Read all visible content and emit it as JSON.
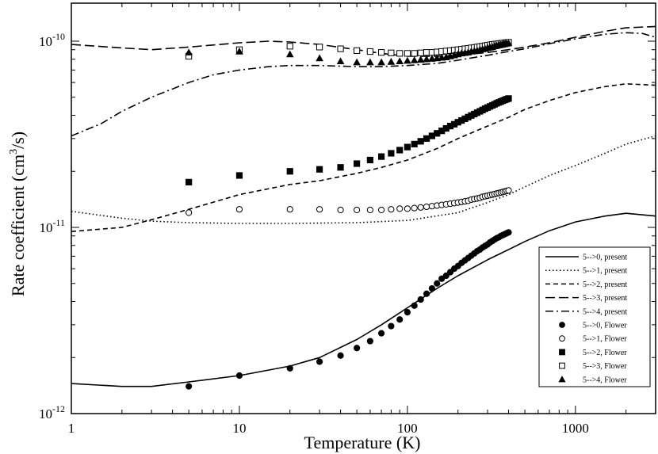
{
  "chart_data": {
    "type": "line",
    "title": "",
    "xlabel": "Temperature (K)",
    "ylabel": "Rate coefficient (cm",
    "ylabel_sup": "3",
    "ylabel_tail": "/s)",
    "xscale": "log",
    "yscale": "log",
    "xlim": [
      1,
      3000
    ],
    "ylim": [
      1e-12,
      1.6e-10
    ],
    "x_tick_labels": [
      {
        "value": 1,
        "label": "1"
      },
      {
        "value": 10,
        "label": "10"
      },
      {
        "value": 100,
        "label": "100"
      },
      {
        "value": 1000,
        "label": "1000"
      }
    ],
    "y_tick_labels": [
      {
        "value": 1e-12,
        "base": "10",
        "exp": "-12"
      },
      {
        "value": 1e-11,
        "base": "10",
        "exp": "-11"
      },
      {
        "value": 1e-10,
        "base": "10",
        "exp": "-10"
      }
    ],
    "grid": false,
    "legend_position": "bottom-right",
    "series": [
      {
        "name": "5-->0, present",
        "style": "line",
        "dash": "solid",
        "x": [
          1,
          2,
          3,
          5,
          10,
          20,
          30,
          50,
          70,
          100,
          150,
          200,
          300,
          400,
          500,
          700,
          1000,
          1500,
          2000,
          3000
        ],
        "y": [
          1.45e-12,
          1.4e-12,
          1.4e-12,
          1.48e-12,
          1.6e-12,
          1.8e-12,
          2e-12,
          2.5e-12,
          3e-12,
          3.7e-12,
          4.7e-12,
          5.5e-12,
          6.7e-12,
          7.6e-12,
          8.4e-12,
          9.6e-12,
          1.07e-11,
          1.15e-11,
          1.19e-11,
          1.15e-11
        ]
      },
      {
        "name": "5-->1, present",
        "style": "line",
        "dash": "dotted",
        "x": [
          1,
          2,
          3,
          5,
          10,
          20,
          50,
          100,
          200,
          300,
          400,
          500,
          700,
          1000,
          1500,
          2000,
          3000
        ],
        "y": [
          1.22e-11,
          1.12e-11,
          1.08e-11,
          1.06e-11,
          1.05e-11,
          1.05e-11,
          1.06e-11,
          1.09e-11,
          1.2e-11,
          1.36e-11,
          1.5e-11,
          1.65e-11,
          1.9e-11,
          2.15e-11,
          2.5e-11,
          2.8e-11,
          3.1e-11
        ]
      },
      {
        "name": "5-->2, present",
        "style": "line",
        "dash": "dashed",
        "x": [
          1,
          2,
          3,
          5,
          10,
          20,
          30,
          50,
          70,
          100,
          150,
          200,
          300,
          400,
          500,
          700,
          1000,
          1500,
          2000,
          3000
        ],
        "y": [
          9.5e-12,
          1e-11,
          1.1e-11,
          1.25e-11,
          1.5e-11,
          1.7e-11,
          1.78e-11,
          1.95e-11,
          2.1e-11,
          2.3e-11,
          2.65e-11,
          3e-11,
          3.5e-11,
          3.9e-11,
          4.3e-11,
          4.8e-11,
          5.3e-11,
          5.7e-11,
          5.9e-11,
          5.8e-11
        ]
      },
      {
        "name": "5-->3, present",
        "style": "line",
        "dash": "longdash",
        "x": [
          1,
          2,
          3,
          5,
          10,
          15,
          20,
          30,
          50,
          70,
          100,
          150,
          200,
          300,
          400,
          500,
          700,
          1000,
          1500,
          2000,
          3000
        ],
        "y": [
          9.6e-11,
          9.2e-11,
          9e-11,
          9.3e-11,
          9.8e-11,
          1e-10,
          9.9e-11,
          9.6e-11,
          9e-11,
          8.6e-11,
          8.3e-11,
          8.3e-11,
          8.4e-11,
          8.7e-11,
          9e-11,
          9.3e-11,
          9.8e-11,
          1.05e-10,
          1.13e-10,
          1.18e-10,
          1.2e-10
        ]
      },
      {
        "name": "5-->4, present",
        "style": "line",
        "dash": "dashdot",
        "x": [
          1,
          1.5,
          2,
          3,
          5,
          7,
          10,
          15,
          20,
          30,
          50,
          70,
          100,
          150,
          200,
          300,
          400,
          500,
          700,
          1000,
          1500,
          2000,
          2500,
          3000
        ],
        "y": [
          3.1e-11,
          3.6e-11,
          4.2e-11,
          5e-11,
          6e-11,
          6.6e-11,
          7e-11,
          7.3e-11,
          7.4e-11,
          7.4e-11,
          7.3e-11,
          7.3e-11,
          7.4e-11,
          7.6e-11,
          7.9e-11,
          8.4e-11,
          8.8e-11,
          9.1e-11,
          9.7e-11,
          1.03e-10,
          1.09e-10,
          1.11e-10,
          1.1e-10,
          1.05e-10
        ]
      },
      {
        "name": "5-->0, Flower",
        "style": "marker",
        "marker": "circle-filled",
        "x": [
          5,
          10,
          20,
          30,
          40,
          50,
          60,
          70,
          80,
          90,
          100,
          110,
          120,
          130,
          140,
          150,
          160,
          170,
          180,
          190,
          200,
          210,
          220,
          230,
          240,
          250,
          260,
          270,
          280,
          290,
          300,
          310,
          320,
          330,
          340,
          350,
          360,
          370,
          380,
          390,
          400
        ],
        "y": [
          1.4e-12,
          1.6e-12,
          1.75e-12,
          1.9e-12,
          2.05e-12,
          2.25e-12,
          2.45e-12,
          2.7e-12,
          2.95e-12,
          3.2e-12,
          3.5e-12,
          3.8e-12,
          4.1e-12,
          4.4e-12,
          4.7e-12,
          5e-12,
          5.3e-12,
          5.5e-12,
          5.75e-12,
          6e-12,
          6.2e-12,
          6.45e-12,
          6.65e-12,
          6.85e-12,
          7.05e-12,
          7.25e-12,
          7.45e-12,
          7.6e-12,
          7.8e-12,
          7.95e-12,
          8.1e-12,
          8.3e-12,
          8.45e-12,
          8.6e-12,
          8.75e-12,
          8.85e-12,
          9e-12,
          9.1e-12,
          9.2e-12,
          9.3e-12,
          9.4e-12
        ]
      },
      {
        "name": "5-->1, Flower",
        "style": "marker",
        "marker": "circle-open",
        "x": [
          5,
          10,
          20,
          30,
          40,
          50,
          60,
          70,
          80,
          90,
          100,
          110,
          120,
          130,
          140,
          150,
          160,
          170,
          180,
          190,
          200,
          210,
          220,
          230,
          240,
          250,
          260,
          270,
          280,
          290,
          300,
          310,
          320,
          330,
          340,
          350,
          360,
          370,
          380,
          390,
          400
        ],
        "y": [
          1.2e-11,
          1.25e-11,
          1.25e-11,
          1.25e-11,
          1.24e-11,
          1.24e-11,
          1.24e-11,
          1.24e-11,
          1.25e-11,
          1.26e-11,
          1.26e-11,
          1.27e-11,
          1.28e-11,
          1.29e-11,
          1.3e-11,
          1.31e-11,
          1.32e-11,
          1.33e-11,
          1.34e-11,
          1.35e-11,
          1.36e-11,
          1.37e-11,
          1.38e-11,
          1.39e-11,
          1.41e-11,
          1.42e-11,
          1.43e-11,
          1.44e-11,
          1.46e-11,
          1.47e-11,
          1.48e-11,
          1.49e-11,
          1.5e-11,
          1.51e-11,
          1.52e-11,
          1.53e-11,
          1.54e-11,
          1.55e-11,
          1.56e-11,
          1.57e-11,
          1.58e-11
        ]
      },
      {
        "name": "5-->2, Flower",
        "style": "marker",
        "marker": "square-filled",
        "x": [
          5,
          10,
          20,
          30,
          40,
          50,
          60,
          70,
          80,
          90,
          100,
          110,
          120,
          130,
          140,
          150,
          160,
          170,
          180,
          190,
          200,
          210,
          220,
          230,
          240,
          250,
          260,
          270,
          280,
          290,
          300,
          310,
          320,
          330,
          340,
          350,
          360,
          370,
          380,
          390,
          400
        ],
        "y": [
          1.75e-11,
          1.9e-11,
          2e-11,
          2.05e-11,
          2.1e-11,
          2.2e-11,
          2.3e-11,
          2.4e-11,
          2.5e-11,
          2.6e-11,
          2.7e-11,
          2.8e-11,
          2.9e-11,
          3e-11,
          3.1e-11,
          3.2e-11,
          3.3e-11,
          3.4e-11,
          3.5e-11,
          3.58e-11,
          3.67e-11,
          3.75e-11,
          3.83e-11,
          3.91e-11,
          3.99e-11,
          4.06e-11,
          4.13e-11,
          4.2e-11,
          4.27e-11,
          4.34e-11,
          4.4e-11,
          4.46e-11,
          4.52e-11,
          4.58e-11,
          4.64e-11,
          4.69e-11,
          4.74e-11,
          4.79e-11,
          4.84e-11,
          4.88e-11,
          4.92e-11
        ]
      },
      {
        "name": "5-->3, Flower",
        "style": "marker",
        "marker": "square-open",
        "x": [
          5,
          10,
          20,
          30,
          40,
          50,
          60,
          70,
          80,
          90,
          100,
          110,
          120,
          130,
          140,
          150,
          160,
          170,
          180,
          190,
          200,
          210,
          220,
          230,
          240,
          250,
          260,
          270,
          280,
          290,
          300,
          310,
          320,
          330,
          340,
          350,
          360,
          370,
          380,
          390,
          400
        ],
        "y": [
          8.3e-11,
          9e-11,
          9.4e-11,
          9.3e-11,
          9.1e-11,
          8.9e-11,
          8.8e-11,
          8.7e-11,
          8.65e-11,
          8.6e-11,
          8.6e-11,
          8.6e-11,
          8.65e-11,
          8.7e-11,
          8.7e-11,
          8.75e-11,
          8.8e-11,
          8.85e-11,
          8.9e-11,
          8.95e-11,
          9e-11,
          9.05e-11,
          9.1e-11,
          9.15e-11,
          9.2e-11,
          9.25e-11,
          9.3e-11,
          9.35e-11,
          9.4e-11,
          9.45e-11,
          9.5e-11,
          9.55e-11,
          9.6e-11,
          9.63e-11,
          9.66e-11,
          9.7e-11,
          9.73e-11,
          9.76e-11,
          9.8e-11,
          9.83e-11,
          9.86e-11
        ]
      },
      {
        "name": "5-->4, Flower",
        "style": "marker",
        "marker": "triangle-filled",
        "x": [
          5,
          10,
          20,
          30,
          40,
          50,
          60,
          70,
          80,
          90,
          100,
          110,
          120,
          130,
          140,
          150,
          160,
          170,
          180,
          190,
          200,
          210,
          220,
          230,
          240,
          250,
          260,
          270,
          280,
          290,
          300,
          310,
          320,
          330,
          340,
          350,
          360,
          370,
          380,
          390,
          400
        ],
        "y": [
          8.7e-11,
          8.8e-11,
          8.5e-11,
          8.1e-11,
          7.8e-11,
          7.7e-11,
          7.7e-11,
          7.7e-11,
          7.75e-11,
          7.8e-11,
          7.85e-11,
          7.9e-11,
          7.95e-11,
          8e-11,
          8.05e-11,
          8.1e-11,
          8.15e-11,
          8.2e-11,
          8.3e-11,
          8.4e-11,
          8.5e-11,
          8.6e-11,
          8.65e-11,
          8.7e-11,
          8.8e-11,
          8.85e-11,
          8.9e-11,
          9e-11,
          9.05e-11,
          9.1e-11,
          9.2e-11,
          9.25e-11,
          9.3e-11,
          9.4e-11,
          9.45e-11,
          9.5e-11,
          9.55e-11,
          9.6e-11,
          9.65e-11,
          9.7e-11,
          9.75e-11
        ]
      }
    ]
  }
}
